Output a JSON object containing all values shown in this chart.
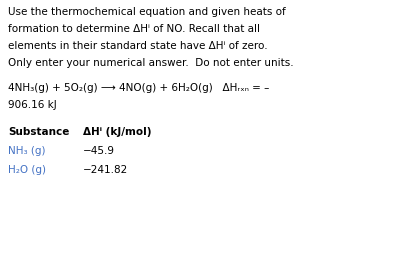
{
  "bg_color": "#ffffff",
  "text_color": "#000000",
  "blue_color": "#4472c4",
  "figsize": [
    4.03,
    2.71
  ],
  "dpi": 100,
  "paragraph1_lines": [
    "Use the thermochemical equation and given heats of",
    "formation to determine ΔHⁱ of NO. Recall that all",
    "elements in their standard state have ΔHⁱ of zero.",
    "Only enter your numerical answer.  Do not enter units."
  ],
  "equation_line1": "4NH₃(g) + 5O₂(g) ⟶ 4NO(g) + 6H₂O(g)   ΔHᵣₓₙ = –",
  "equation_line2": "906.16 kJ",
  "table_header_substance": "Substance",
  "table_header_dhf": "ΔHⁱ (kJ/mol)",
  "table_row1_sub": "NH₃ (g)",
  "table_row1_val": "−45.9",
  "table_row2_sub": "H₂O (g)",
  "table_row2_val": "−241.82",
  "font_size_body": 7.5,
  "font_size_eq": 7.5,
  "font_size_table_header": 7.5,
  "font_size_table": 7.5
}
